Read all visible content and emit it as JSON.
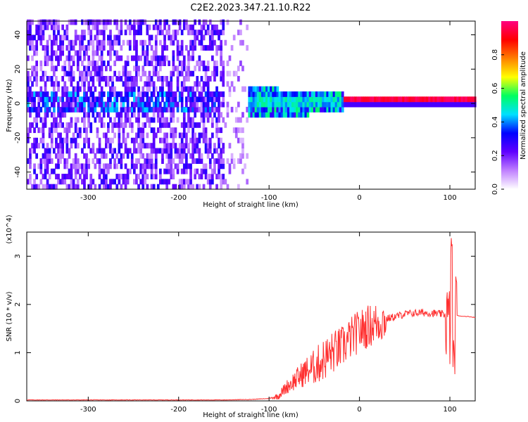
{
  "title": "C2E2.2023.347.21.10.R22",
  "chart_data": [
    {
      "type": "heatmap",
      "xlabel": "Height of straight line (km)",
      "ylabel": "Frequency (Hz)",
      "xlim": [
        -368,
        128
      ],
      "ylim": [
        -50,
        48
      ],
      "xticks": [
        -300,
        -200,
        -100,
        0,
        100
      ],
      "xtick_labels": [
        "-300",
        "-200",
        "-100",
        "0",
        "100"
      ],
      "yticks": [
        -40,
        -20,
        0,
        20,
        40
      ],
      "ytick_labels": [
        "-40",
        "-20",
        "0",
        "20",
        "40"
      ],
      "colorbar": {
        "label": "Normalized spectral amplitude",
        "range": [
          0,
          1
        ],
        "ticks": [
          0.0,
          0.2,
          0.4,
          0.6,
          0.8
        ],
        "tick_labels": [
          "0.0",
          "0.2",
          "0.4",
          "0.6",
          "0.8"
        ],
        "colors": [
          "#ffffff",
          "#c080ff",
          "#6000ff",
          "#0000ff",
          "#00e0ff",
          "#00ff60",
          "#ffff00",
          "#ff8000",
          "#ff0000",
          "#ff0080"
        ]
      },
      "regions": [
        {
          "x": [
            -368,
            -150
          ],
          "freq": [
            -50,
            48
          ],
          "level": 0.18,
          "description": "broadband scattered noise"
        },
        {
          "x": [
            -150,
            -20
          ],
          "freq": [
            -10,
            10
          ],
          "level": 0.5,
          "description": "emerging signal near 0 Hz"
        },
        {
          "x": [
            -20,
            128
          ],
          "freq": [
            -2,
            2
          ],
          "level": 0.95,
          "description": "strong narrow signal at 0 Hz"
        }
      ],
      "grid": false
    },
    {
      "type": "line",
      "xlabel": "Height of straight line (km)",
      "ylabel": "SNR (10 * v/v)",
      "y_multiplier": "(x10^4)",
      "xlim": [
        -368,
        128
      ],
      "ylim": [
        0,
        3.5
      ],
      "xticks": [
        -300,
        -200,
        -100,
        0,
        100
      ],
      "xtick_labels": [
        "-300",
        "-200",
        "-100",
        "0",
        "100"
      ],
      "yticks": [
        0,
        1,
        2,
        3
      ],
      "ytick_labels": [
        "0",
        "1",
        "2",
        "3"
      ],
      "color": "#ff3030",
      "series": [
        {
          "x": [
            -368,
            -300,
            -200,
            -150,
            -120,
            -100,
            -90,
            -80,
            -70,
            -60,
            -50,
            -40,
            -30,
            -20,
            -10,
            0,
            10,
            20,
            30,
            40,
            50,
            60,
            70,
            80,
            90,
            95,
            100,
            102,
            104,
            106,
            110,
            120,
            128
          ],
          "y": [
            0.02,
            0.02,
            0.02,
            0.02,
            0.03,
            0.05,
            0.1,
            0.3,
            0.45,
            0.6,
            0.7,
            0.85,
            1.0,
            1.1,
            1.3,
            1.45,
            1.55,
            1.62,
            1.7,
            1.75,
            1.8,
            1.82,
            1.83,
            1.82,
            1.8,
            1.79,
            1.5,
            3.4,
            0.4,
            1.8,
            1.76,
            1.75,
            1.73
          ]
        }
      ],
      "grid": false
    }
  ]
}
